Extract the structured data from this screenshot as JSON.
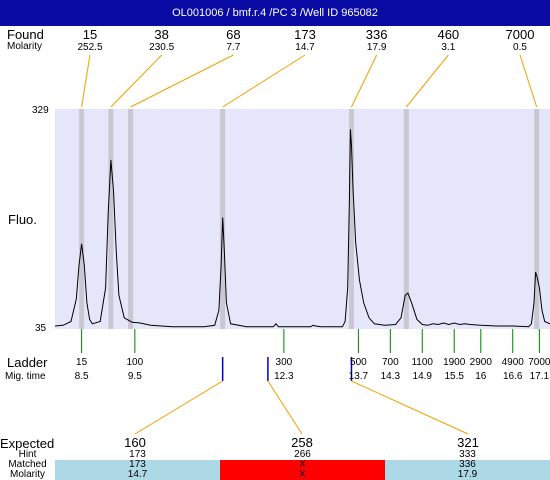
{
  "title": "OL001006 / bmf.r.4 /PC 3 /Well ID 965082",
  "labels": {
    "found": "Found",
    "molarity": "Molarity",
    "fluo": "Fluo.",
    "ladder": "Ladder",
    "mig_time": "Mig. time",
    "expected": "Expected",
    "hint": "Hint",
    "matched": "Matched",
    "molarity_bottom": "Molarity"
  },
  "found_columns": [
    {
      "size": "15",
      "molarity": "252.5"
    },
    {
      "size": "38",
      "molarity": "230.5"
    },
    {
      "size": "68",
      "molarity": "7.7"
    },
    {
      "size": "173",
      "molarity": "14.7"
    },
    {
      "size": "336",
      "molarity": "17.9"
    },
    {
      "size": "460",
      "molarity": "3.1"
    },
    {
      "size": "7000",
      "molarity": "0.5"
    }
  ],
  "ladder": [
    {
      "size": "15",
      "time": "8.5"
    },
    {
      "size": "100",
      "time": "9.5"
    },
    {
      "size": "300",
      "time": "12.3"
    },
    {
      "size": "500",
      "time": "13.7"
    },
    {
      "size": "700",
      "time": "14.3"
    },
    {
      "size": "1100",
      "time": "14.9"
    },
    {
      "size": "1900",
      "time": "15.5"
    },
    {
      "size": "2900",
      "time": "16"
    },
    {
      "size": "4900",
      "time": "16.6"
    },
    {
      "size": "7000",
      "time": "17.1"
    }
  ],
  "expected": [
    {
      "size": "160",
      "hint": "173",
      "matched": "173",
      "molarity": "14.7",
      "status_color": "#add8e6"
    },
    {
      "size": "258",
      "hint": "266",
      "matched": "X",
      "molarity": "X",
      "status_color": "#ff0000"
    },
    {
      "size": "321",
      "hint": "333",
      "matched": "336",
      "molarity": "17.9",
      "status_color": "#add8e6"
    }
  ],
  "colors": {
    "title_bg": "#0a0aa5",
    "plot_bg": "#e6e6fa",
    "band": "#c8c8d2",
    "connector": "#f0a000",
    "ladder_tick": "#008000",
    "marker": "#0000cc",
    "matched_ok": "#add8e6",
    "matched_fail": "#ff0000"
  },
  "chart_data": {
    "type": "line",
    "ylabel": "Fluo.",
    "ylim": [
      35,
      329
    ],
    "yticks": [
      "329",
      "35"
    ],
    "xlabel": "Mig. time",
    "xlim": [
      8.0,
      17.3
    ],
    "series": [
      {
        "points": [
          [
            8.0,
            39
          ],
          [
            8.15,
            40
          ],
          [
            8.3,
            45
          ],
          [
            8.4,
            75
          ],
          [
            8.45,
            120
          ],
          [
            8.5,
            149
          ],
          [
            8.55,
            120
          ],
          [
            8.6,
            70
          ],
          [
            8.65,
            48
          ],
          [
            8.7,
            42
          ],
          [
            8.85,
            45
          ],
          [
            8.95,
            90
          ],
          [
            9.0,
            190
          ],
          [
            9.05,
            261
          ],
          [
            9.1,
            220
          ],
          [
            9.15,
            140
          ],
          [
            9.2,
            80
          ],
          [
            9.3,
            50
          ],
          [
            9.45,
            44
          ],
          [
            9.6,
            43
          ],
          [
            9.8,
            40
          ],
          [
            10.2,
            38
          ],
          [
            10.8,
            38
          ],
          [
            11.0,
            40
          ],
          [
            11.08,
            60
          ],
          [
            11.12,
            120
          ],
          [
            11.15,
            184
          ],
          [
            11.18,
            140
          ],
          [
            11.22,
            70
          ],
          [
            11.3,
            42
          ],
          [
            11.6,
            38
          ],
          [
            12.1,
            38
          ],
          [
            12.15,
            42
          ],
          [
            12.2,
            38
          ],
          [
            12.8,
            38
          ],
          [
            12.85,
            40
          ],
          [
            12.9,
            39
          ],
          [
            13.0,
            38
          ],
          [
            13.4,
            38
          ],
          [
            13.45,
            45
          ],
          [
            13.5,
            90
          ],
          [
            13.53,
            200
          ],
          [
            13.55,
            302
          ],
          [
            13.57,
            280
          ],
          [
            13.6,
            220
          ],
          [
            13.65,
            150
          ],
          [
            13.72,
            100
          ],
          [
            13.8,
            70
          ],
          [
            13.9,
            50
          ],
          [
            14.0,
            42
          ],
          [
            14.2,
            40
          ],
          [
            14.4,
            41
          ],
          [
            14.5,
            50
          ],
          [
            14.58,
            80
          ],
          [
            14.63,
            83
          ],
          [
            14.7,
            70
          ],
          [
            14.8,
            48
          ],
          [
            14.9,
            41
          ],
          [
            15.0,
            40
          ],
          [
            15.1,
            42
          ],
          [
            15.2,
            41
          ],
          [
            15.3,
            43
          ],
          [
            15.4,
            41
          ],
          [
            15.5,
            43
          ],
          [
            15.6,
            41
          ],
          [
            15.7,
            42
          ],
          [
            15.8,
            41
          ],
          [
            16.0,
            40
          ],
          [
            16.3,
            39
          ],
          [
            16.6,
            39
          ],
          [
            16.9,
            38
          ],
          [
            16.95,
            42
          ],
          [
            17.0,
            70
          ],
          [
            17.03,
            111
          ],
          [
            17.06,
            104
          ],
          [
            17.1,
            90
          ],
          [
            17.15,
            60
          ],
          [
            17.2,
            45
          ],
          [
            17.3,
            42
          ]
        ]
      }
    ],
    "found_bands_time": [
      8.5,
      9.05,
      9.42,
      11.15,
      13.57,
      14.6,
      17.05
    ],
    "ladder_time": [
      8.5,
      9.5,
      12.3,
      13.7,
      14.3,
      14.9,
      15.5,
      16.0,
      16.6,
      17.1
    ],
    "expected_marker_time": [
      11.15,
      12.0,
      13.57
    ]
  }
}
